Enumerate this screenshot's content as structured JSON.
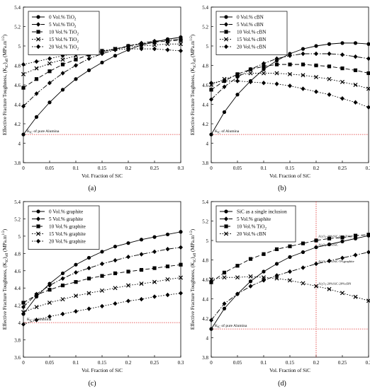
{
  "chart_data": [
    {
      "type": "line",
      "panel_label": "(a)",
      "xlabel": "Vol. Fraction of SiC",
      "ylabel": "Effective Fracture Toughness, (K",
      "ylabel_sub": "IC",
      "ylabel_tail": ")",
      "ylabel_sub2": "eff",
      "ylabel_units": " (MPa.m",
      "ylabel_exp": "1/2",
      "ylabel_close": ")",
      "xlim": [
        0,
        0.3
      ],
      "ylim": [
        3.8,
        5.4
      ],
      "xticks": [
        "0",
        "0.05",
        "0.1",
        "0.15",
        "0.2",
        "0.25",
        "0.3"
      ],
      "yticks": [
        "3.8",
        "4",
        "4.2",
        "4.4",
        "4.6",
        "4.8",
        "5",
        "5.2",
        "5.4"
      ],
      "legend_position": "top-left",
      "reference": {
        "label": "K",
        "label_sub": "IC",
        "label_tail": " of pure Alumina",
        "y": 4.09
      },
      "vline": null,
      "annotations": [],
      "x": [
        0,
        0.025,
        0.05,
        0.075,
        0.1,
        0.125,
        0.15,
        0.175,
        0.2,
        0.225,
        0.25,
        0.275,
        0.3
      ],
      "series": [
        {
          "name": "0 Vol.% TiO",
          "name_sub": "2",
          "marker": "circle",
          "dash": "solid",
          "values": [
            4.09,
            4.27,
            4.42,
            4.55,
            4.66,
            4.75,
            4.83,
            4.9,
            4.96,
            5.01,
            5.04,
            5.07,
            5.09
          ]
        },
        {
          "name": "5 Vol.% TiO",
          "name_sub": "2",
          "marker": "diamond",
          "dash": "dashdot",
          "values": [
            4.38,
            4.51,
            4.62,
            4.72,
            4.8,
            4.87,
            4.92,
            4.96,
            5.0,
            5.03,
            5.05,
            5.06,
            5.07
          ]
        },
        {
          "name": "10 Vol.% TiO",
          "name_sub": "2",
          "marker": "square",
          "dash": "dash",
          "values": [
            4.57,
            4.66,
            4.74,
            4.81,
            4.86,
            4.91,
            4.94,
            4.97,
            5.0,
            5.02,
            5.04,
            5.05,
            5.06
          ]
        },
        {
          "name": "15 Vol.% TiO",
          "name_sub": "2",
          "marker": "x",
          "dash": "dot",
          "values": [
            4.71,
            4.77,
            4.82,
            4.86,
            4.9,
            4.93,
            4.95,
            4.97,
            4.99,
            5.0,
            5.01,
            5.02,
            5.02
          ]
        },
        {
          "name": "20 Vol.% TiO",
          "name_sub": "2",
          "marker": "diamond",
          "dash": "dot",
          "values": [
            4.81,
            4.84,
            4.87,
            4.9,
            4.92,
            4.94,
            4.95,
            4.96,
            4.97,
            4.97,
            4.97,
            4.96,
            4.95
          ]
        }
      ]
    },
    {
      "type": "line",
      "panel_label": "(b)",
      "xlabel": "Vol. Fraction of SiC",
      "ylabel": "Effective Fracture Toughness, (K",
      "ylabel_sub": "IC",
      "ylabel_tail": ")",
      "ylabel_sub2": "eff",
      "ylabel_units": " (MPa.m",
      "ylabel_exp": "1/2",
      "ylabel_close": ")",
      "xlim": [
        0,
        0.3
      ],
      "ylim": [
        3.8,
        5.4
      ],
      "xticks": [
        "0",
        "0.05",
        "0.1",
        "0.15",
        "0.2",
        "0.25",
        "0.3"
      ],
      "yticks": [
        "3.8",
        "4",
        "4.2",
        "4.4",
        "4.6",
        "4.8",
        "5",
        "5.2",
        "5.4"
      ],
      "legend_position": "top-left",
      "reference": {
        "label": "K",
        "label_sub": "IC",
        "label_tail": " of Alumina",
        "y": 4.09
      },
      "vline": null,
      "annotations": [],
      "x": [
        0,
        0.025,
        0.05,
        0.075,
        0.1,
        0.125,
        0.15,
        0.175,
        0.2,
        0.225,
        0.25,
        0.275,
        0.3
      ],
      "series": [
        {
          "name": "0 Vol.% cBN",
          "name_sub": "",
          "marker": "circle",
          "dash": "solid",
          "values": [
            4.09,
            4.32,
            4.5,
            4.64,
            4.76,
            4.85,
            4.92,
            4.97,
            5.0,
            5.02,
            5.03,
            5.03,
            5.02
          ]
        },
        {
          "name": "5 Vol.% cBN",
          "name_sub": "",
          "marker": "diamond",
          "dash": "dashdot",
          "values": [
            4.45,
            4.58,
            4.68,
            4.76,
            4.82,
            4.87,
            4.9,
            4.92,
            4.92,
            4.92,
            4.91,
            4.89,
            4.87
          ]
        },
        {
          "name": "10 Vol.% cBN",
          "name_sub": "",
          "marker": "square",
          "dash": "dash",
          "values": [
            4.55,
            4.64,
            4.71,
            4.76,
            4.79,
            4.81,
            4.81,
            4.81,
            4.8,
            4.79,
            4.77,
            4.75,
            4.72
          ]
        },
        {
          "name": "15 Vol.% cBN",
          "name_sub": "",
          "marker": "x",
          "dash": "dot",
          "values": [
            4.6,
            4.66,
            4.7,
            4.72,
            4.72,
            4.72,
            4.71,
            4.7,
            4.68,
            4.66,
            4.63,
            4.6,
            4.56
          ]
        },
        {
          "name": "20 Vol.% cBN",
          "name_sub": "",
          "marker": "diamond",
          "dash": "dot",
          "values": [
            4.62,
            4.64,
            4.64,
            4.63,
            4.62,
            4.61,
            4.59,
            4.56,
            4.53,
            4.5,
            4.46,
            4.42,
            4.37
          ]
        }
      ]
    },
    {
      "type": "line",
      "panel_label": "(c)",
      "xlabel": "Vol. Fraction of SiC",
      "ylabel": "Effective Fracture Toughness, (K",
      "ylabel_sub": "IC",
      "ylabel_tail": ")",
      "ylabel_sub2": "eff",
      "ylabel_units": " (MPa.m",
      "ylabel_exp": "1/2",
      "ylabel_close": ")",
      "xlim": [
        0,
        0.3
      ],
      "ylim": [
        3.6,
        5.4
      ],
      "xticks": [
        "0",
        "0.05",
        "0.1",
        "0.15",
        "0.2",
        "0.25",
        "0.3"
      ],
      "yticks": [
        "3.6",
        "3.8",
        "4",
        "4.2",
        "4.4",
        "4.6",
        "4.8",
        "5",
        "5.2",
        "5.4"
      ],
      "legend_position": "top-left",
      "reference": {
        "label": "K",
        "label_sub": "IC",
        "label_tail": " of Alumina",
        "y": 4.0
      },
      "vline": null,
      "annotations": [],
      "x": [
        0,
        0.025,
        0.05,
        0.075,
        0.1,
        0.125,
        0.15,
        0.175,
        0.2,
        0.225,
        0.25,
        0.275,
        0.3
      ],
      "series": [
        {
          "name": "0 Vol.% graphite",
          "name_sub": "",
          "marker": "circle",
          "dash": "solid",
          "values": [
            4.1,
            4.3,
            4.45,
            4.57,
            4.67,
            4.75,
            4.82,
            4.88,
            4.92,
            4.96,
            4.99,
            5.02,
            5.05
          ]
        },
        {
          "name": "5 Vol.% graphite",
          "name_sub": "",
          "marker": "diamond",
          "dash": "dashdot",
          "values": [
            4.18,
            4.33,
            4.43,
            4.51,
            4.58,
            4.63,
            4.68,
            4.72,
            4.76,
            4.79,
            4.82,
            4.85,
            4.87
          ]
        },
        {
          "name": "10 Vol.% graphite",
          "name_sub": "",
          "marker": "square",
          "dash": "dash",
          "values": [
            4.23,
            4.32,
            4.38,
            4.43,
            4.47,
            4.51,
            4.54,
            4.57,
            4.59,
            4.61,
            4.63,
            4.65,
            4.67
          ]
        },
        {
          "name": "15 Vol.% graphite",
          "name_sub": "",
          "marker": "x",
          "dash": "dot",
          "values": [
            4.12,
            4.18,
            4.23,
            4.27,
            4.31,
            4.34,
            4.37,
            4.4,
            4.43,
            4.45,
            4.47,
            4.5,
            4.52
          ]
        },
        {
          "name": "20 Vol.% graphite",
          "name_sub": "",
          "marker": "diamond",
          "dash": "dot",
          "values": [
            3.98,
            4.03,
            4.07,
            4.1,
            4.13,
            4.16,
            4.19,
            4.22,
            4.25,
            4.27,
            4.3,
            4.32,
            4.34
          ]
        }
      ]
    },
    {
      "type": "line",
      "panel_label": "(d)",
      "xlabel": "Vol. Fraction of SiC",
      "ylabel": "Effective Fracture Toughness, (K",
      "ylabel_sub": "IC",
      "ylabel_tail": ")",
      "ylabel_sub2": "eff",
      "ylabel_units": " (MPa.m",
      "ylabel_exp": "1/2",
      "ylabel_close": ")",
      "xlim": [
        0,
        0.3
      ],
      "ylim": [
        3.8,
        5.4
      ],
      "xticks": [
        "0",
        "0.05",
        "0.1",
        "0.15",
        "0.2",
        "0.25",
        "0.3"
      ],
      "yticks": [
        "3.8",
        "4",
        "4.2",
        "4.4",
        "4.6",
        "4.8",
        "5",
        "5.2",
        "5.4"
      ],
      "legend_position": "top-left",
      "reference": {
        "label": "K",
        "label_sub": "IC",
        "label_tail": " of pure Alumina",
        "y": 4.09
      },
      "vline": {
        "x": 0.2
      },
      "annotations": [
        {
          "text": "Al₂O₃-20%SiC-10%TiO₂",
          "x": 0.2,
          "y": 5.02
        },
        {
          "text": "Al₂O₃-20%SiC",
          "x": 0.2,
          "y": 4.93
        },
        {
          "text": "Al₂O₃-20%SiC-5%graphite",
          "x": 0.2,
          "y": 4.76
        },
        {
          "text": "Al₂O₃-20%SiC-20%cBN",
          "x": 0.2,
          "y": 4.53
        }
      ],
      "x": [
        0,
        0.025,
        0.05,
        0.075,
        0.1,
        0.125,
        0.15,
        0.175,
        0.2,
        0.225,
        0.25,
        0.275,
        0.3
      ],
      "series": [
        {
          "name": "SiC as a single inclusion",
          "name_sub": "",
          "marker": "circle",
          "dash": "solid",
          "values": [
            4.09,
            4.3,
            4.45,
            4.58,
            4.68,
            4.76,
            4.83,
            4.88,
            4.93,
            4.96,
            4.99,
            5.02,
            5.05
          ]
        },
        {
          "name": "5 Vol.% graphite",
          "name_sub": "",
          "marker": "diamond",
          "dash": "dashdot",
          "values": [
            4.18,
            4.35,
            4.45,
            4.53,
            4.59,
            4.64,
            4.68,
            4.72,
            4.76,
            4.79,
            4.82,
            4.85,
            4.88
          ]
        },
        {
          "name": "10 Vol.% TiO",
          "name_sub": "2",
          "marker": "square",
          "dash": "dash",
          "values": [
            4.57,
            4.67,
            4.74,
            4.81,
            4.86,
            4.91,
            4.94,
            4.97,
            5.0,
            5.02,
            5.03,
            5.05,
            5.06
          ]
        },
        {
          "name": "20 Vol.% cBN",
          "name_sub": "",
          "marker": "x",
          "dash": "dot",
          "values": [
            4.6,
            4.62,
            4.62,
            4.63,
            4.62,
            4.61,
            4.59,
            4.56,
            4.53,
            4.5,
            4.46,
            4.42,
            4.38
          ]
        }
      ]
    }
  ]
}
